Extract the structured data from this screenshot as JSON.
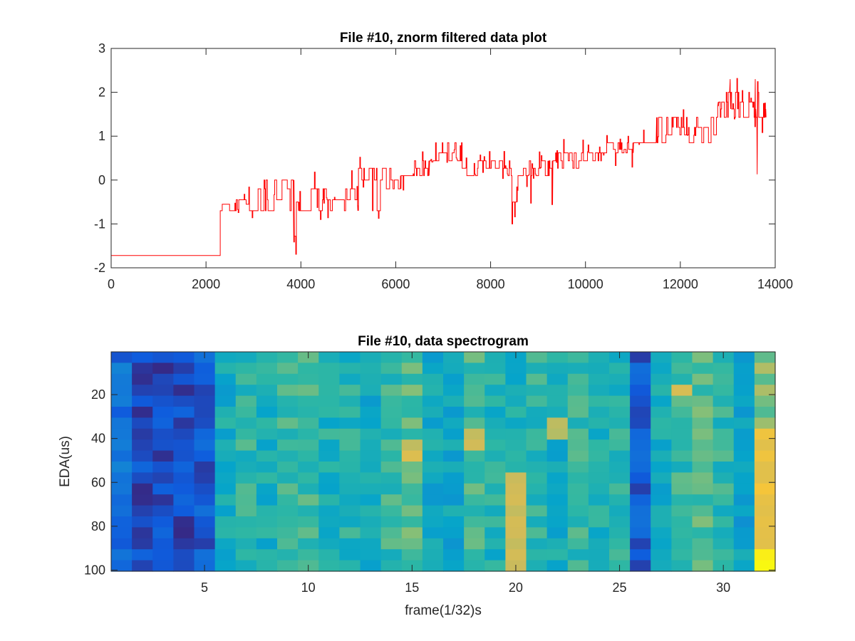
{
  "chart_data": [
    {
      "type": "line",
      "title": "File #10, znorm filtered data plot",
      "xlabel": "",
      "ylabel": "",
      "xlim": [
        0,
        14000
      ],
      "ylim": [
        -2,
        3
      ],
      "xticks": [
        0,
        2000,
        4000,
        6000,
        8000,
        10000,
        12000,
        14000
      ],
      "yticks": [
        -2,
        -1,
        0,
        1,
        2,
        3
      ],
      "series": [
        {
          "name": "znorm filtered",
          "color": "#ff0000",
          "level_levels": [
            -1.72,
            -0.62,
            -0.45,
            -0.28,
            -0.12,
            0.1,
            0.27,
            0.44,
            0.62,
            0.85,
            1.03,
            1.2,
            1.43,
            1.62,
            1.78,
            2.0
          ],
          "segments": [
            {
              "x0": 0,
              "x1": 2300,
              "levels": [
                -1.72
              ],
              "spike_rate": 0
            },
            {
              "x0": 2300,
              "x1": 3000,
              "levels": [
                -0.7,
                -0.45,
                -0.55
              ],
              "spike_rate": 0.1
            },
            {
              "x0": 3000,
              "x1": 3850,
              "levels": [
                -0.7,
                -0.45,
                -0.2,
                0.0
              ],
              "spike_rate": 0.12
            },
            {
              "x0": 3850,
              "x1": 3950,
              "levels": [
                -1.28,
                -0.5
              ],
              "spike_rate": 0.3
            },
            {
              "x0": 3950,
              "x1": 5200,
              "levels": [
                -0.7,
                -0.45,
                -0.2
              ],
              "spike_rate": 0.08
            },
            {
              "x0": 5200,
              "x1": 6100,
              "levels": [
                -0.7,
                -0.2,
                0.0,
                0.27
              ],
              "spike_rate": 0.1
            },
            {
              "x0": 6100,
              "x1": 6700,
              "levels": [
                0.1,
                0.27,
                0.44
              ],
              "spike_rate": 0.08
            },
            {
              "x0": 6700,
              "x1": 7400,
              "levels": [
                0.44,
                0.62,
                0.85
              ],
              "spike_rate": 0.12
            },
            {
              "x0": 7400,
              "x1": 8450,
              "levels": [
                0.27,
                0.44,
                0.1
              ],
              "spike_rate": 0.1
            },
            {
              "x0": 8450,
              "x1": 8550,
              "levels": [
                -1.0,
                -0.5
              ],
              "spike_rate": 0.3
            },
            {
              "x0": 8550,
              "x1": 9300,
              "levels": [
                -0.15,
                0.1,
                0.27,
                0.44
              ],
              "spike_rate": 0.1
            },
            {
              "x0": 9300,
              "x1": 10350,
              "levels": [
                0.44,
                0.27,
                0.62
              ],
              "spike_rate": 0.08
            },
            {
              "x0": 10350,
              "x1": 11000,
              "levels": [
                0.62,
                0.85,
                0.7
              ],
              "spike_rate": 0.1
            },
            {
              "x0": 11000,
              "x1": 11500,
              "levels": [
                0.85
              ],
              "spike_rate": 0.02
            },
            {
              "x0": 11500,
              "x1": 12800,
              "levels": [
                0.85,
                1.03,
                1.2,
                1.43
              ],
              "spike_rate": 0.12
            },
            {
              "x0": 12800,
              "x1": 13800,
              "levels": [
                1.43,
                1.62,
                1.78,
                2.0
              ],
              "spike_rate": 0.15
            }
          ],
          "notable_extremes": {
            "min": -1.72,
            "max": 2.3,
            "spike_low_near_13500": 0.13
          }
        }
      ]
    },
    {
      "type": "heatmap",
      "title": "File #10, data spectrogram",
      "xlabel": "frame(1/32)s",
      "ylabel": "EDA(us)",
      "xlim": [
        0.5,
        32.5
      ],
      "ylim": [
        0.5,
        100.5
      ],
      "y_direction": "reverse",
      "xticks": [
        5,
        10,
        15,
        20,
        25,
        30
      ],
      "yticks": [
        20,
        40,
        60,
        80,
        100
      ],
      "colormap": "parula",
      "clim": [
        0,
        1
      ],
      "columns": 32,
      "rows_per_column": 20,
      "column_intensity": [
        0.18,
        0.08,
        0.08,
        0.08,
        0.12,
        0.42,
        0.48,
        0.44,
        0.5,
        0.52,
        0.45,
        0.46,
        0.4,
        0.5,
        0.55,
        0.4,
        0.38,
        0.52,
        0.45,
        0.42,
        0.48,
        0.42,
        0.5,
        0.45,
        0.46,
        0.12,
        0.42,
        0.5,
        0.55,
        0.48,
        0.38,
        0.62
      ],
      "hotspots": [
        {
          "column": 15,
          "row_from": 40,
          "row_to": 50,
          "value": 0.78
        },
        {
          "column": 18,
          "row_from": 35,
          "row_to": 45,
          "value": 0.78
        },
        {
          "column": 20,
          "row_from": 55,
          "row_to": 100,
          "value": 0.78
        },
        {
          "column": 22,
          "row_from": 30,
          "row_to": 40,
          "value": 0.72
        },
        {
          "column": 28,
          "row_from": 15,
          "row_to": 22,
          "value": 0.82
        },
        {
          "column": 32,
          "row_from": 35,
          "row_to": 100,
          "value": 0.85
        },
        {
          "column": 32,
          "row_from": 90,
          "row_to": 100,
          "value": 1.0
        }
      ]
    }
  ]
}
